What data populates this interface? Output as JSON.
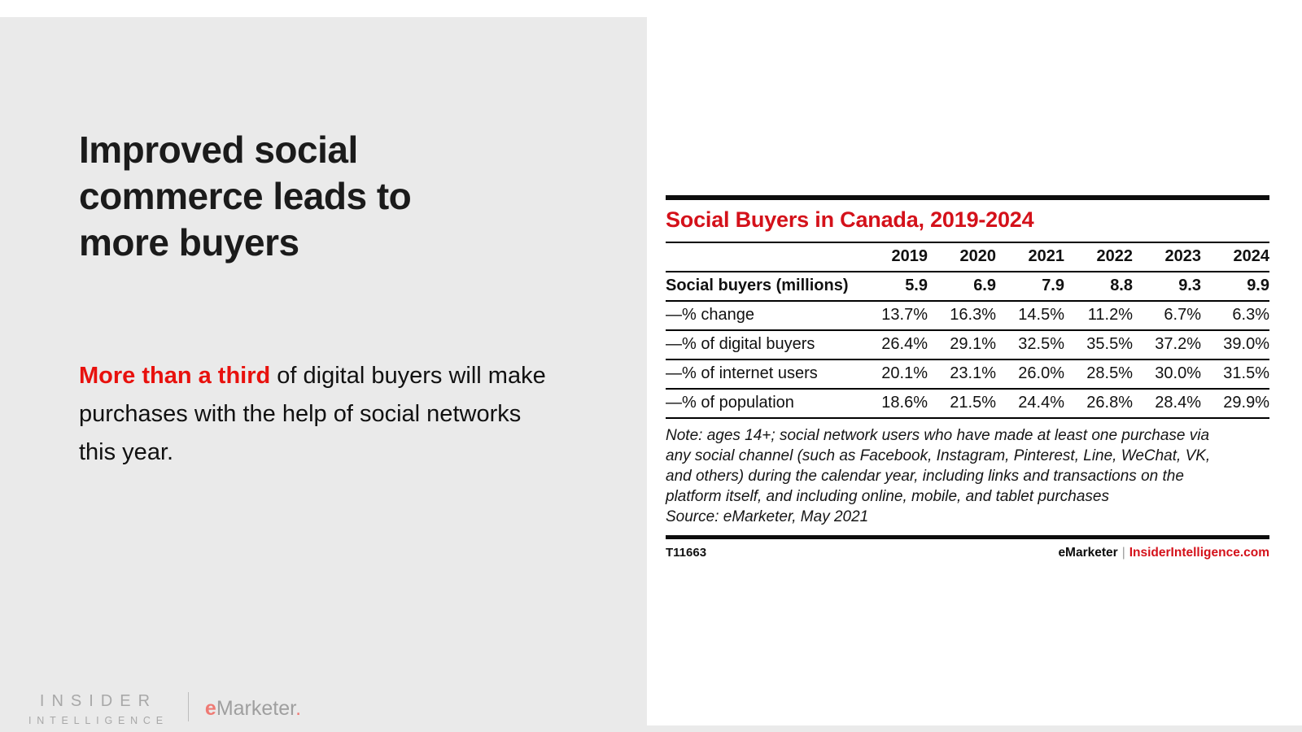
{
  "left": {
    "headline_lines": [
      "Improved social",
      "commerce leads to",
      "more buyers"
    ],
    "body_highlight": "More than a third",
    "body_rest": " of digital buyers will make purchases with the help of social networks this year.",
    "logo": {
      "insider_line1": "INSIDER",
      "insider_line2": "INTELLIGENCE",
      "emarketer_e": "e",
      "emarketer_rest": "Marketer",
      "emarketer_dot": "."
    }
  },
  "chart": {
    "title": "Social Buyers in Canada, 2019-2024",
    "note_lines": [
      "Note: ages 14+; social network users who have made at least one purchase via",
      "any social channel (such as Facebook, Instagram, Pinterest, Line, WeChat, VK,",
      "and others) during the calendar year, including links and transactions on the",
      "platform itself, and including online, mobile, and tablet purchases",
      "Source: eMarketer, May 2021"
    ],
    "footer_id": "T11663",
    "footer_brand": "eMarketer",
    "footer_sep": "|",
    "footer_site": "InsiderIntelligence.com"
  },
  "chart_data": {
    "type": "table",
    "title": "Social Buyers in Canada, 2019-2024",
    "columns": [
      "",
      "2019",
      "2020",
      "2021",
      "2022",
      "2023",
      "2024"
    ],
    "rows": [
      {
        "label": "Social buyers (millions)",
        "bold": true,
        "values": [
          "5.9",
          "6.9",
          "7.9",
          "8.8",
          "9.3",
          "9.9"
        ]
      },
      {
        "label": "—% change",
        "bold": false,
        "values": [
          "13.7%",
          "16.3%",
          "14.5%",
          "11.2%",
          "6.7%",
          "6.3%"
        ]
      },
      {
        "label": "—% of digital buyers",
        "bold": false,
        "values": [
          "26.4%",
          "29.1%",
          "32.5%",
          "35.5%",
          "37.2%",
          "39.0%"
        ]
      },
      {
        "label": "—% of internet users",
        "bold": false,
        "values": [
          "20.1%",
          "23.1%",
          "26.0%",
          "28.5%",
          "30.0%",
          "31.5%"
        ]
      },
      {
        "label": "—% of population",
        "bold": false,
        "values": [
          "18.6%",
          "21.5%",
          "24.4%",
          "26.8%",
          "28.4%",
          "29.9%"
        ]
      }
    ]
  },
  "colors": {
    "accent_red": "#d4111a",
    "slide_red": "#e8110d",
    "panel_gray": "#eaeaea",
    "logo_gray": "#a8a8a8",
    "logo_pink": "#ef7a74"
  }
}
